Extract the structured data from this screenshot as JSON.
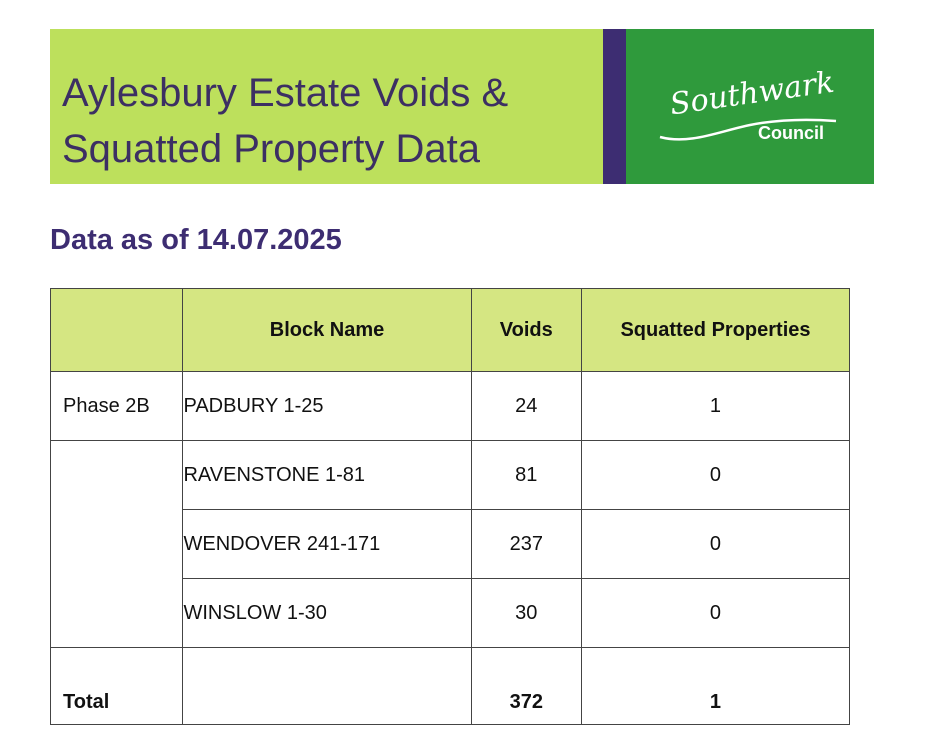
{
  "header": {
    "title_line1": "Aylesbury Estate Voids &",
    "title_line2": "Squatted Property Data",
    "logo_script": "Southwark",
    "logo_council": "Council"
  },
  "subtitle": "Data as of 14.07.2025",
  "colors": {
    "banner_green": "#bde05c",
    "divider_purple": "#3d2d72",
    "logo_green": "#2f9a3c",
    "table_header": "#d5e682",
    "title_text": "#3c2f63"
  },
  "table": {
    "columns": [
      "",
      "Block Name",
      "Voids",
      "Squatted Properties"
    ],
    "rows": [
      {
        "phase": "Phase 2B",
        "block": "PADBURY 1-25",
        "voids": "24",
        "squatted": "1"
      },
      {
        "phase": "",
        "block": "RAVENSTONE 1-81",
        "voids": "81",
        "squatted": "0"
      },
      {
        "phase": "",
        "block": "WENDOVER 241-171",
        "voids": "237",
        "squatted": "0"
      },
      {
        "phase": "",
        "block": "WINSLOW 1-30",
        "voids": "30",
        "squatted": "0"
      }
    ],
    "total": {
      "label": "Total",
      "block": "",
      "voids": "372",
      "squatted": "1"
    }
  }
}
